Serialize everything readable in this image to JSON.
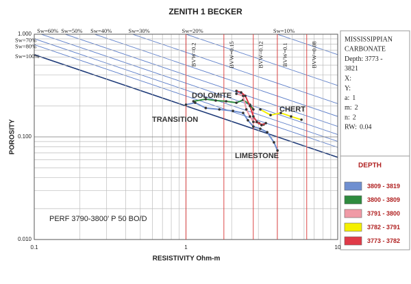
{
  "chart_data": {
    "type": "pickett",
    "title": "ZENITH 1 BECKER",
    "x_label": "RESISTIVITY Ohm-m",
    "y_label": "POROSITY",
    "log_x": true,
    "log_y": true,
    "grid": true,
    "xlim": [
      0.1,
      10
    ],
    "ylim": [
      0.01,
      1
    ],
    "xticks": [
      0.1,
      1,
      10
    ],
    "yticks": [
      {
        "value": 0.01,
        "label": "0.010"
      },
      {
        "value": 0.1,
        "label": "0.100"
      },
      {
        "value": 1,
        "label": "1.000"
      }
    ],
    "xminorticks": [
      0.2,
      0.3,
      0.4,
      0.5,
      0.6,
      0.7,
      0.8,
      0.9,
      2,
      3,
      4,
      5,
      6,
      7,
      8,
      9
    ],
    "yminorticks": [
      0.02,
      0.03,
      0.04,
      0.05,
      0.06,
      0.07,
      0.08,
      0.09,
      0.2,
      0.3,
      0.4,
      0.5,
      0.6,
      0.7,
      0.8,
      0.9
    ],
    "sw_lines": [
      {
        "value": 100,
        "label": "Sw=100%"
      },
      {
        "value": 80,
        "label": "Sw=80%"
      },
      {
        "value": 70,
        "label": "Sw=70%"
      },
      {
        "value": 60,
        "label": "Sw=60%"
      },
      {
        "value": 50,
        "label": "Sw=50%"
      },
      {
        "value": 40,
        "label": "Sw=40%"
      },
      {
        "value": 30,
        "label": "Sw=30%"
      },
      {
        "value": 20,
        "label": "Sw=20%"
      },
      {
        "value": 10,
        "label": "Sw=10%"
      }
    ],
    "bvw_lines": [
      {
        "value": 0.2,
        "label": "BVW=0.2"
      },
      {
        "value": 0.15,
        "label": "BVW=0.15"
      },
      {
        "value": 0.12,
        "label": "BVW=0.12"
      },
      {
        "value": 0.1,
        "label": "BVW=0.1"
      },
      {
        "value": 0.08,
        "label": "BVW=0.08"
      }
    ],
    "annotations": [
      "DOLOMITE",
      "CHERT",
      "TRANSITION",
      "LIMESTONE",
      "PERF 3790-3800' P 50 BO/D"
    ],
    "info_lines": [
      "MISSISSIPPIAN",
      "CARBONATE",
      "Depth: 3773 -",
      "3821",
      "X:",
      "Y:"
    ],
    "parameters": [
      {
        "label": "a:",
        "value": 1
      },
      {
        "label": "m:",
        "value": 2
      },
      {
        "label": "n:",
        "value": 2
      },
      {
        "label": "RW:",
        "value": 0.04
      }
    ],
    "legend_title": "DEPTH",
    "series": [
      {
        "name": "3809 - 3819",
        "color": "#6f8fd0",
        "x": [
          1.0,
          1.15,
          1.35,
          1.66,
          2.04,
          2.38,
          2.56,
          2.78,
          3.09,
          3.43,
          3.8,
          4.01
        ],
        "values": [
          0.206,
          0.215,
          0.191,
          0.185,
          0.179,
          0.171,
          0.145,
          0.126,
          0.12,
          0.111,
          0.0885,
          0.0736
        ]
      },
      {
        "name": "3800 - 3809",
        "color": "#2e8b3e",
        "x": [
          1.12,
          1.35,
          1.57,
          1.84,
          2.15,
          2.38,
          2.64,
          2.78
        ],
        "values": [
          0.222,
          0.233,
          0.226,
          0.222,
          0.215,
          0.229,
          0.206,
          0.185
        ]
      },
      {
        "name": "3791 - 3800",
        "color": "#f09aa6",
        "x": [
          2.15,
          2.38,
          2.5,
          2.64,
          2.78,
          3.03,
          3.25
        ],
        "values": [
          0.263,
          0.251,
          0.185,
          0.158,
          0.14,
          0.136,
          0.132
        ]
      },
      {
        "name": "3782 - 3791",
        "color": "#f5f000",
        "x": [
          3.09,
          3.61,
          4.22,
          4.93,
          5.77
        ],
        "values": [
          0.185,
          0.163,
          0.171,
          0.158,
          0.147
        ]
      },
      {
        "name": "3773 - 3782",
        "color": "#e03a48",
        "x": [
          2.15,
          2.31,
          2.46,
          2.64,
          2.78,
          2.93,
          3.15,
          3.36
        ],
        "values": [
          0.28,
          0.271,
          0.251,
          0.2,
          0.158,
          0.14,
          0.13,
          0.136
        ]
      }
    ]
  }
}
